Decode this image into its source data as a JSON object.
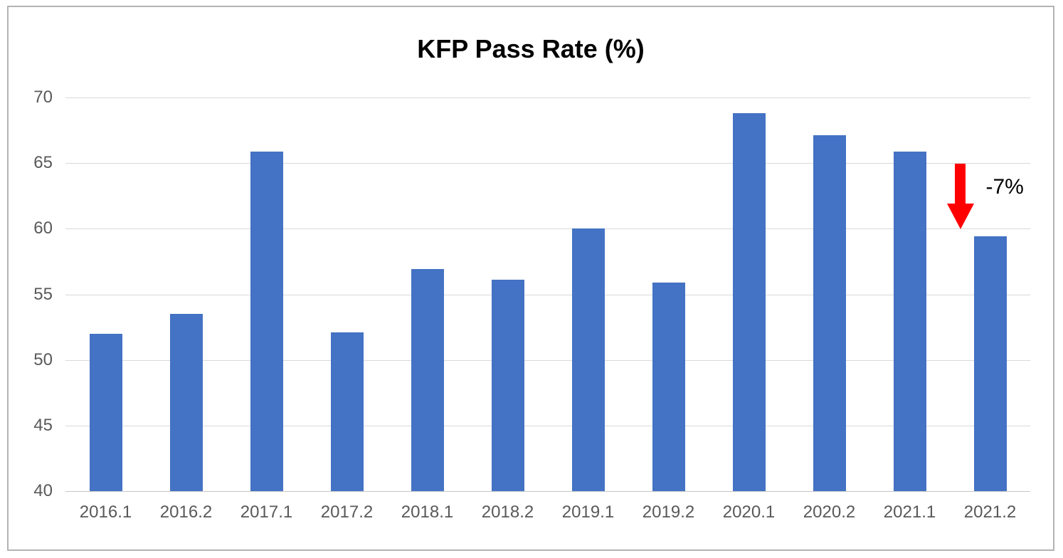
{
  "chart_data": {
    "type": "bar",
    "title": "KFP Pass Rate (%)",
    "categories": [
      "2016.1",
      "2016.2",
      "2017.1",
      "2017.2",
      "2018.1",
      "2018.2",
      "2019.1",
      "2019.2",
      "2020.1",
      "2020.2",
      "2021.1",
      "2021.2"
    ],
    "values": [
      52.0,
      53.5,
      65.9,
      52.1,
      56.9,
      56.1,
      60.0,
      55.9,
      68.8,
      67.1,
      65.9,
      59.4
    ],
    "xlabel": "",
    "ylabel": "",
    "ylim": [
      40,
      70
    ],
    "yticks": [
      40,
      45,
      50,
      55,
      60,
      65,
      70
    ],
    "grid": true,
    "legend": "none",
    "bar_color": "#4472c4",
    "gridline_color": "#d9d9d9",
    "annotation": {
      "label": "-7%",
      "type": "down-arrow",
      "color": "#ff0000"
    }
  }
}
